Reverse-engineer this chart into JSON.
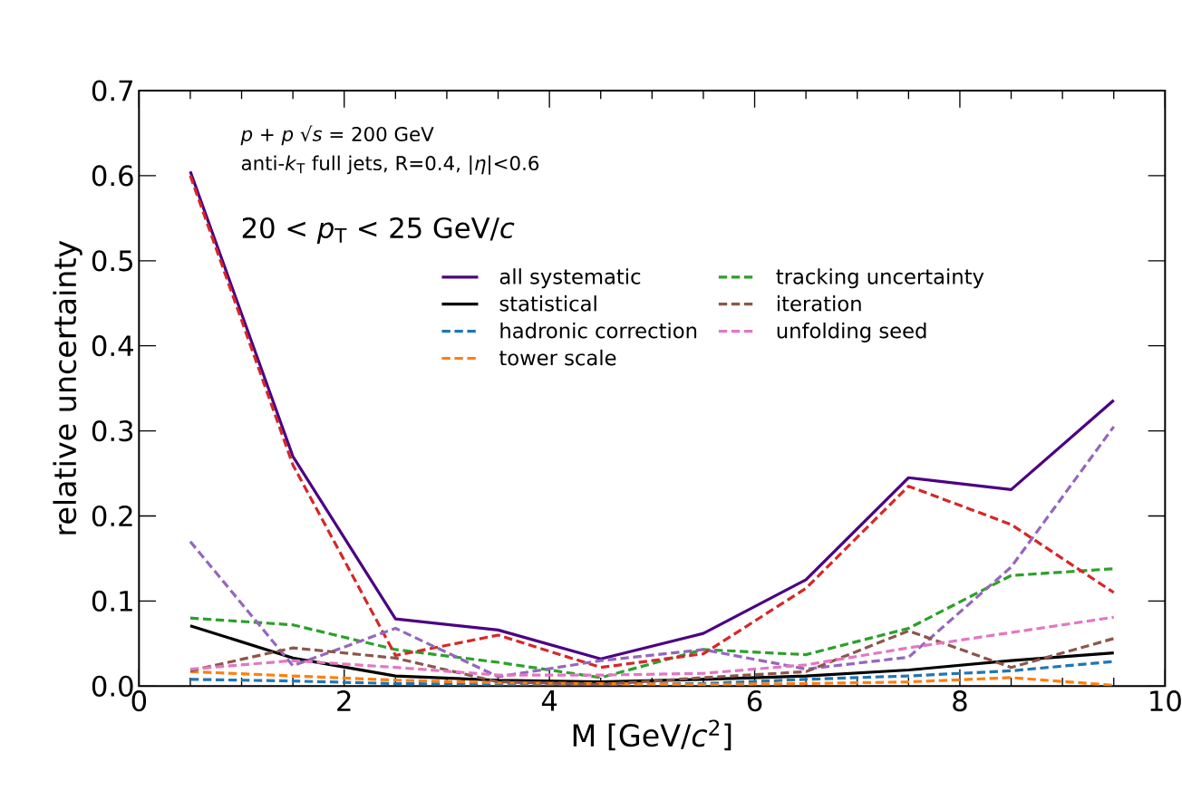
{
  "chart_data": {
    "type": "line",
    "xlabel": "M [GeV/*c*$^{2}$]",
    "ylabel": "relative uncertainty",
    "annotations": [
      "*p* + *p*  √*s* = 200 GeV",
      "anti-*k*$_{T}$ full jets, R=0.4, |*η*|<0.6",
      "20 < *p*$_{T}$ < 25 GeV/*c*"
    ],
    "x": [
      0.5,
      1.5,
      2.5,
      3.5,
      4.5,
      5.5,
      6.5,
      7.5,
      8.5,
      9.5
    ],
    "xlim": [
      0,
      10
    ],
    "ylim": [
      0,
      0.7
    ],
    "xticks": [
      0,
      2,
      4,
      6,
      8,
      10
    ],
    "yticks": [
      {
        "value": 0,
        "label": "0.0"
      },
      {
        "value": 0.1,
        "label": "0.1"
      },
      {
        "value": 0.2,
        "label": "0.2"
      },
      {
        "value": 0.3,
        "label": "0.3"
      },
      {
        "value": 0.4,
        "label": "0.4"
      },
      {
        "value": 0.5,
        "label": "0.5"
      },
      {
        "value": 0.6,
        "label": "0.6"
      },
      {
        "value": 0.7,
        "label": "0.7"
      }
    ],
    "grid": false,
    "legend": "top right",
    "marker": "none",
    "series": [
      {
        "name": "all systematic",
        "color": "#4b0082",
        "line_style": "solid",
        "values": [
          0.605,
          0.27,
          0.079,
          0.066,
          0.032,
          0.062,
          0.125,
          0.245,
          0.231,
          0.336
        ]
      },
      {
        "name": "statistical",
        "color": "#000000",
        "line_style": "solid",
        "values": [
          0.071,
          0.033,
          0.012,
          0.007,
          0.005,
          0.008,
          0.012,
          0.019,
          0.03,
          0.039
        ]
      },
      {
        "name": "hadronic correction",
        "color": "#1f77b4",
        "line_style": "dashed",
        "values": [
          0.008,
          0.006,
          0.003,
          0.002,
          0.002,
          0.003,
          0.008,
          0.012,
          0.018,
          0.029
        ]
      },
      {
        "name": "tower scale",
        "color": "#ff7f0e",
        "line_style": "dashed",
        "values": [
          0.017,
          0.012,
          0.007,
          0.004,
          0.003,
          0.002,
          0.003,
          0.005,
          0.01,
          0.001
        ]
      },
      {
        "name": "tracking uncertainty",
        "color": "#2ca02c",
        "line_style": "dashed",
        "values": [
          0.08,
          0.072,
          0.043,
          0.028,
          0.01,
          0.043,
          0.037,
          0.068,
          0.13,
          0.138
        ]
      },
      {
        "color": "#d62728",
        "line_style": "dashed",
        "values": [
          0.6,
          0.26,
          0.036,
          0.06,
          0.022,
          0.038,
          0.115,
          0.235,
          0.19,
          0.11
        ]
      },
      {
        "color": "#9467bd",
        "line_style": "dashed",
        "values": [
          0.17,
          0.024,
          0.068,
          0.011,
          0.03,
          0.043,
          0.02,
          0.034,
          0.14,
          0.305
        ]
      },
      {
        "name": "iteration",
        "color": "#8c564b",
        "line_style": "dashed",
        "values": [
          0.018,
          0.045,
          0.033,
          0.005,
          0.002,
          0.01,
          0.017,
          0.065,
          0.022,
          0.056
        ]
      },
      {
        "name": "unfolding seed",
        "color": "#e377c2",
        "line_style": "dashed",
        "values": [
          0.02,
          0.03,
          0.022,
          0.013,
          0.013,
          0.015,
          0.025,
          0.045,
          0.063,
          0.081
        ]
      }
    ]
  }
}
